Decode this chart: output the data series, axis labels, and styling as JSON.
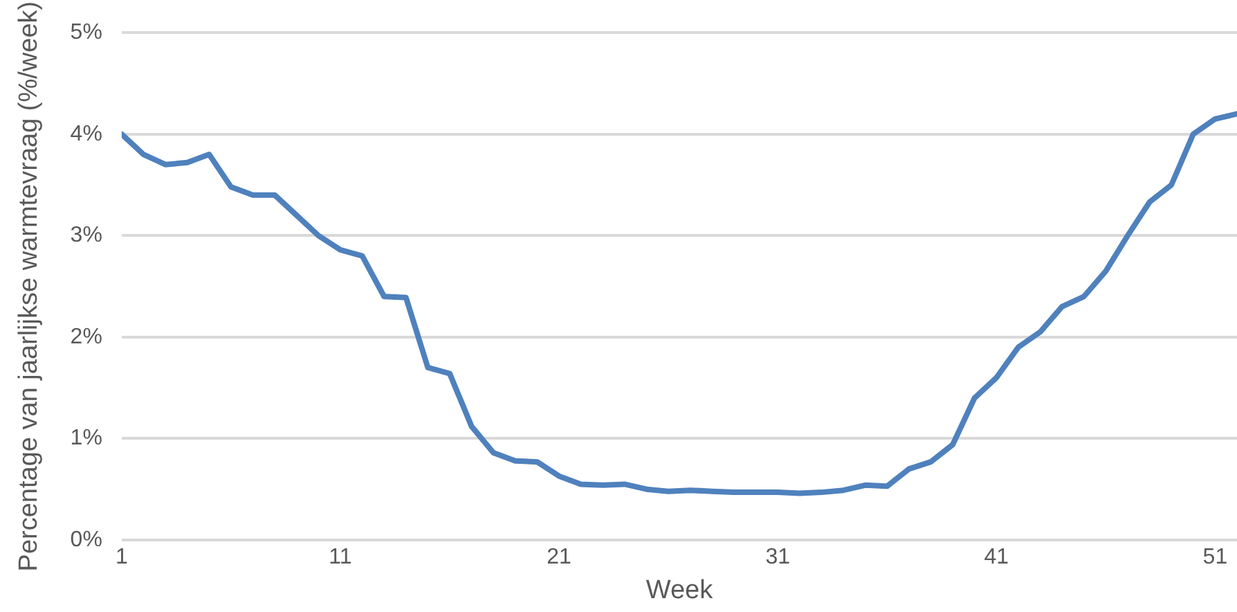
{
  "chart_data": {
    "type": "line",
    "xlabel": "Week",
    "ylabel": "Percentage van jaarlijkse warmtevraag (%/week)",
    "x": [
      1,
      2,
      3,
      4,
      5,
      6,
      7,
      8,
      9,
      10,
      11,
      12,
      13,
      14,
      15,
      16,
      17,
      18,
      19,
      20,
      21,
      22,
      23,
      24,
      25,
      26,
      27,
      28,
      29,
      30,
      31,
      32,
      33,
      34,
      35,
      36,
      37,
      38,
      39,
      40,
      41,
      42,
      43,
      44,
      45,
      46,
      47,
      48,
      49,
      50,
      51,
      52
    ],
    "series": [
      {
        "color": "#4f81bd",
        "values": [
          4.0,
          3.8,
          3.7,
          3.72,
          3.8,
          3.48,
          3.4,
          3.4,
          3.2,
          3.0,
          2.86,
          2.8,
          2.4,
          2.39,
          1.7,
          1.64,
          1.12,
          0.86,
          0.78,
          0.77,
          0.63,
          0.55,
          0.54,
          0.55,
          0.5,
          0.48,
          0.49,
          0.48,
          0.47,
          0.47,
          0.47,
          0.46,
          0.47,
          0.49,
          0.54,
          0.53,
          0.7,
          0.77,
          0.94,
          1.4,
          1.6,
          1.9,
          2.05,
          2.3,
          2.4,
          2.65,
          3.0,
          3.33,
          3.5,
          4.0,
          4.15,
          4.2
        ]
      }
    ],
    "xlim": [
      1,
      52
    ],
    "xticks": [
      1,
      11,
      21,
      31,
      41,
      51
    ],
    "ylim": [
      0,
      5
    ],
    "yticks": [
      {
        "value": 0,
        "label": "0%"
      },
      {
        "value": 1,
        "label": "1%"
      },
      {
        "value": 2,
        "label": "2%"
      },
      {
        "value": 3,
        "label": "3%"
      },
      {
        "value": 4,
        "label": "4%"
      },
      {
        "value": 5,
        "label": "5%"
      }
    ],
    "grid": "y",
    "legend": false,
    "marker": "none",
    "line_style": "solid"
  }
}
